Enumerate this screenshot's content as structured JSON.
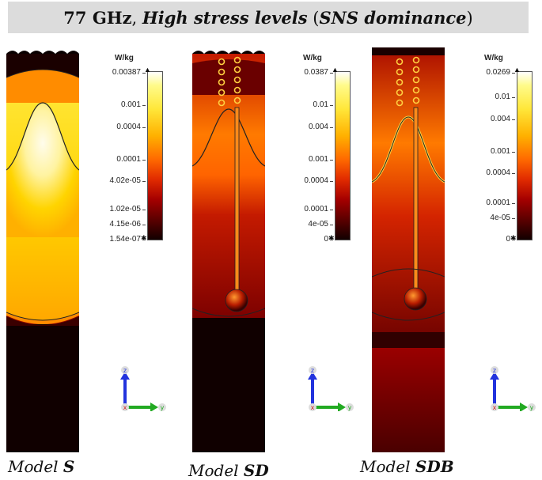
{
  "banner": {
    "freq": "77 GHz",
    "sep": ",",
    "rest": "High stress levels",
    "paren_open": "(",
    "sns": "SNS dominance",
    "paren_close": ")"
  },
  "panels": [
    {
      "caption_prefix": "Model",
      "caption_bold": "S",
      "unit": "W/kg",
      "ticks": [
        "0.00387",
        "0.001",
        "0.0004",
        "0.0001",
        "4.02e-05",
        "1.02e-05",
        "4.15e-06",
        "1.54e-07"
      ]
    },
    {
      "caption_prefix": "Model",
      "caption_bold": "SD",
      "unit": "W/kg",
      "ticks": [
        "0.0387",
        "0.01",
        "0.004",
        "0.001",
        "0.0004",
        "0.0001",
        "4e-05",
        "0"
      ]
    },
    {
      "caption_prefix": "Model",
      "caption_bold": "SDB",
      "unit": "W/kg",
      "ticks": [
        "0.0269",
        "0.01",
        "0.004",
        "0.001",
        "0.0004",
        "0.0001",
        "4e-05",
        "0"
      ]
    }
  ],
  "axes": {
    "z": "z",
    "x": "x",
    "y": "y"
  },
  "colors": {
    "black": "#0a0000",
    "dark_red": "#5a0000",
    "red": "#c81e00",
    "orange": "#ff8a00",
    "yellow": "#ffe84a",
    "white_hot": "#fffce8"
  }
}
